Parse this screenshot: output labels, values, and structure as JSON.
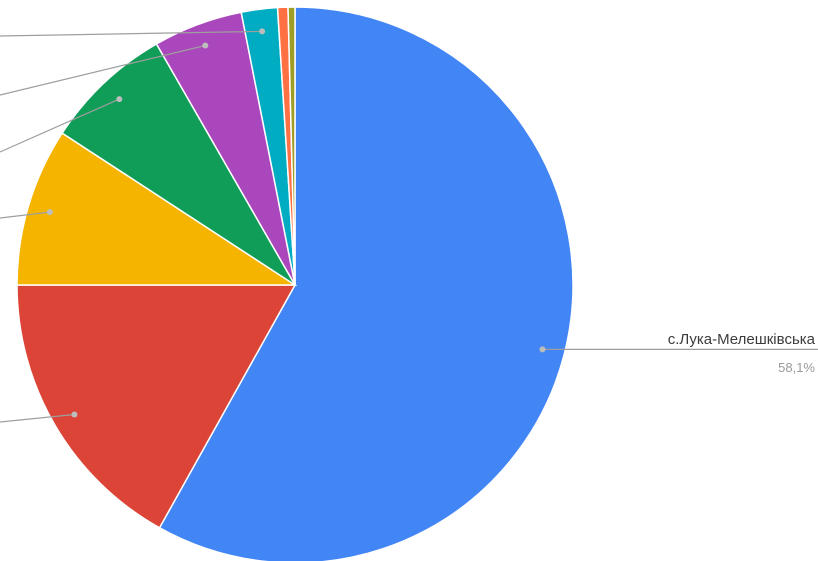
{
  "chart_data": {
    "type": "pie",
    "slices": [
      {
        "label": "с.Лука-Мелешківська",
        "pct_label": "58,1%",
        "value": 58.1,
        "color": "#4285f4"
      },
      {
        "label": "",
        "pct_label": "",
        "value": 16.9,
        "color": "#db4437"
      },
      {
        "label": "",
        "pct_label": "",
        "value": 9.2,
        "color": "#f4b400"
      },
      {
        "label": "",
        "pct_label": "",
        "value": 7.5,
        "color": "#0f9d58"
      },
      {
        "label": "",
        "pct_label": "",
        "value": 5.2,
        "color": "#ab47bc"
      },
      {
        "label": "",
        "pct_label": "",
        "value": 2.1,
        "color": "#00acc1"
      },
      {
        "label": "",
        "pct_label": "",
        "value": 0.6,
        "color": "#ff7043"
      },
      {
        "label": "",
        "pct_label": "",
        "value": 0.4,
        "color": "#9e9d24"
      }
    ]
  }
}
